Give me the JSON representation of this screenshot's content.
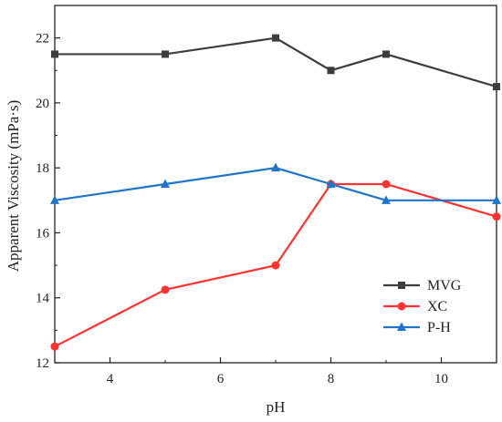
{
  "chart_data": {
    "type": "line",
    "xlabel": "pH",
    "ylabel": "Apparent Viscosity (mPa·s)",
    "xlim": [
      3,
      11
    ],
    "ylim": [
      12,
      23
    ],
    "xticks": [
      4,
      6,
      8,
      10
    ],
    "yticks": [
      12,
      14,
      16,
      18,
      20,
      22
    ],
    "grid": false,
    "legend_position": "bottom-right",
    "series": [
      {
        "name": "MVG",
        "marker": "square",
        "color": "#3d3d3d",
        "x": [
          3,
          5,
          7,
          8,
          9,
          11
        ],
        "y": [
          21.5,
          21.5,
          22.0,
          21.0,
          21.5,
          20.5
        ]
      },
      {
        "name": "XC",
        "marker": "circle",
        "color": "#ff3333",
        "x": [
          3,
          5,
          7,
          8,
          9,
          11
        ],
        "y": [
          12.5,
          14.25,
          15.0,
          17.5,
          17.5,
          16.5
        ]
      },
      {
        "name": "P-H",
        "marker": "triangle",
        "color": "#1f75c9",
        "x": [
          3,
          5,
          7,
          8,
          9,
          11
        ],
        "y": [
          17.0,
          17.5,
          18.0,
          17.5,
          17.0,
          17.0
        ]
      }
    ]
  }
}
